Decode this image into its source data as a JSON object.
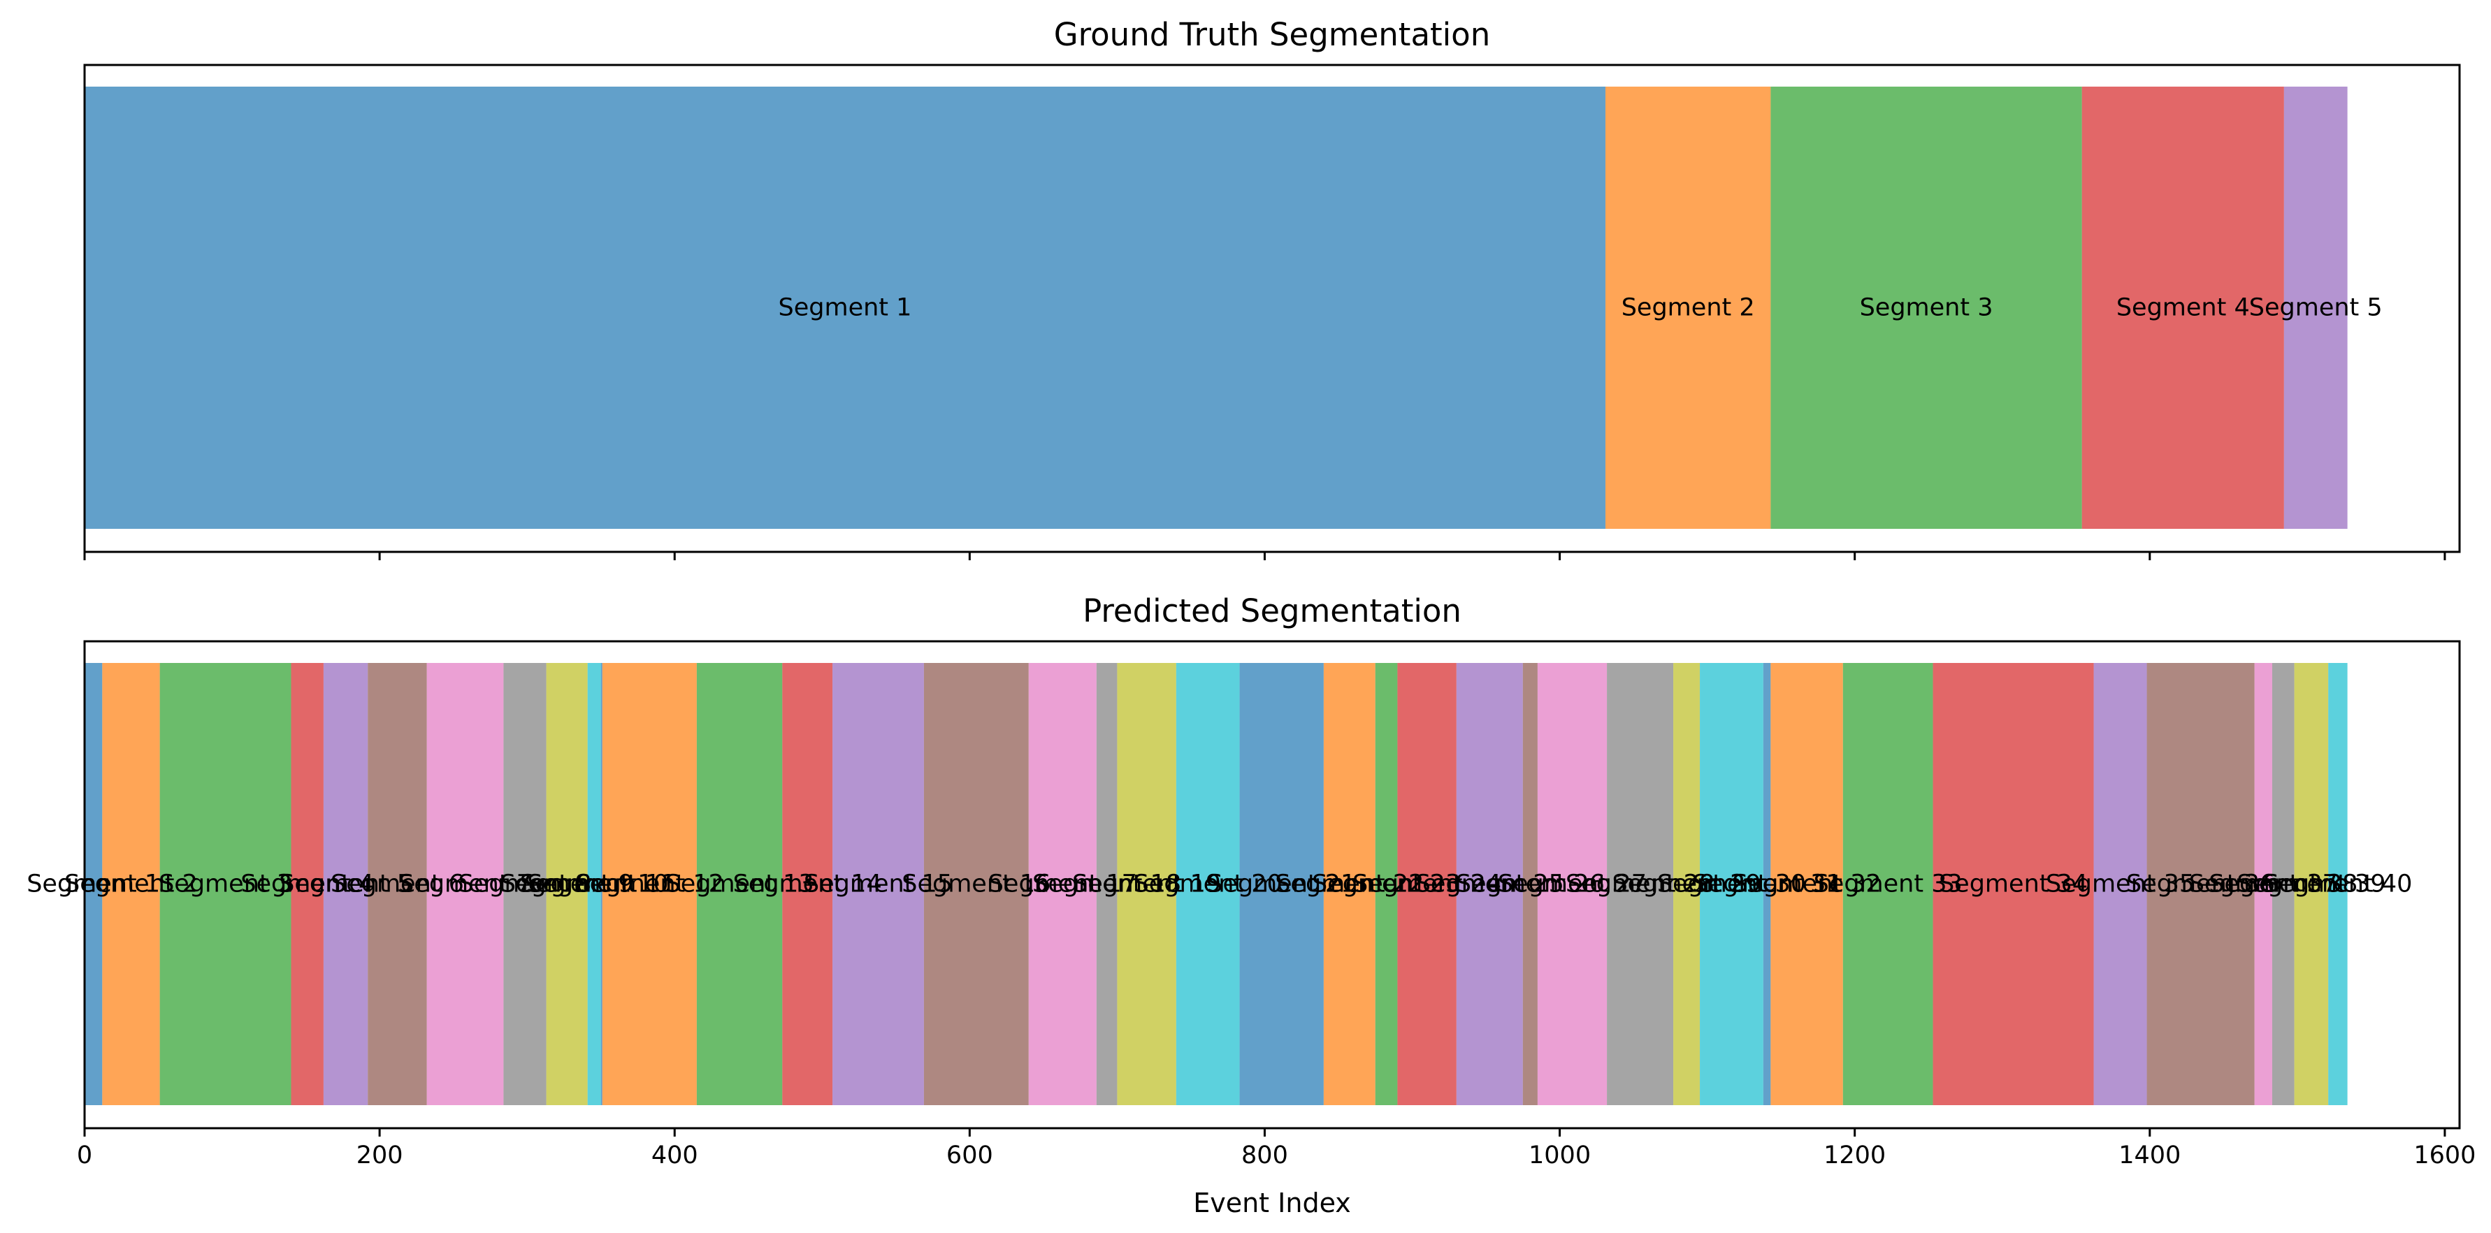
{
  "chart_data": [
    {
      "type": "bar",
      "orientation": "horizontal-stacked",
      "title": "Ground Truth Segmentation",
      "xlim": [
        0,
        1610
      ],
      "show_x_tick_labels": false,
      "segments": [
        {
          "label": "Segment 1",
          "start": 0,
          "end": 1031,
          "color": "#1f77b4"
        },
        {
          "label": "Segment 2",
          "start": 1031,
          "end": 1143,
          "color": "#ff7f0e"
        },
        {
          "label": "Segment 3",
          "start": 1143,
          "end": 1354,
          "color": "#2ca02c"
        },
        {
          "label": "Segment 4",
          "start": 1354,
          "end": 1491,
          "color": "#d62728"
        },
        {
          "label": "Segment 5",
          "start": 1491,
          "end": 1534,
          "color": "#9467bd"
        }
      ]
    },
    {
      "type": "bar",
      "orientation": "horizontal-stacked",
      "title": "Predicted Segmentation",
      "xlabel": "Event Index",
      "xlim": [
        0,
        1610
      ],
      "xticks": [
        0,
        200,
        400,
        600,
        800,
        1000,
        1200,
        1400,
        1600
      ],
      "show_x_tick_labels": true,
      "segments": [
        {
          "label": "Segment 1",
          "start": 0,
          "end": 12,
          "color": "#1f77b4"
        },
        {
          "label": "Segment 2",
          "start": 12,
          "end": 51,
          "color": "#ff7f0e"
        },
        {
          "label": "Segment 3",
          "start": 51,
          "end": 140,
          "color": "#2ca02c"
        },
        {
          "label": "Segment 4",
          "start": 140,
          "end": 162,
          "color": "#d62728"
        },
        {
          "label": "Segment 5",
          "start": 162,
          "end": 192,
          "color": "#9467bd"
        },
        {
          "label": "Segment 6",
          "start": 192,
          "end": 232,
          "color": "#8c564b"
        },
        {
          "label": "Segment 7",
          "start": 232,
          "end": 284,
          "color": "#e377c2"
        },
        {
          "label": "Segment 8",
          "start": 284,
          "end": 313,
          "color": "#7f7f7f"
        },
        {
          "label": "Segment 9",
          "start": 313,
          "end": 341,
          "color": "#bcbd22"
        },
        {
          "label": "Segment 10",
          "start": 341,
          "end": 350,
          "color": "#17becf"
        },
        {
          "label": "Segment 11",
          "start": 350,
          "end": 351,
          "color": "#1f77b4"
        },
        {
          "label": "Segment 12",
          "start": 351,
          "end": 415,
          "color": "#ff7f0e"
        },
        {
          "label": "Segment 13",
          "start": 415,
          "end": 473,
          "color": "#2ca02c"
        },
        {
          "label": "Segment 14",
          "start": 473,
          "end": 507,
          "color": "#d62728"
        },
        {
          "label": "Segment 15",
          "start": 507,
          "end": 569,
          "color": "#9467bd"
        },
        {
          "label": "Segment 16",
          "start": 569,
          "end": 640,
          "color": "#8c564b"
        },
        {
          "label": "Segment 17",
          "start": 640,
          "end": 686,
          "color": "#e377c2"
        },
        {
          "label": "Segment 18",
          "start": 686,
          "end": 700,
          "color": "#7f7f7f"
        },
        {
          "label": "Segment 19",
          "start": 700,
          "end": 740,
          "color": "#bcbd22"
        },
        {
          "label": "Segment 20",
          "start": 740,
          "end": 783,
          "color": "#17becf"
        },
        {
          "label": "Segment 21",
          "start": 783,
          "end": 840,
          "color": "#1f77b4"
        },
        {
          "label": "Segment 22",
          "start": 840,
          "end": 875,
          "color": "#ff7f0e"
        },
        {
          "label": "Segment 23",
          "start": 875,
          "end": 890,
          "color": "#2ca02c"
        },
        {
          "label": "Segment 24",
          "start": 890,
          "end": 930,
          "color": "#d62728"
        },
        {
          "label": "Segment 25",
          "start": 930,
          "end": 975,
          "color": "#9467bd"
        },
        {
          "label": "Segment 26",
          "start": 975,
          "end": 985,
          "color": "#8c564b"
        },
        {
          "label": "Segment 27",
          "start": 985,
          "end": 1032,
          "color": "#e377c2"
        },
        {
          "label": "Segment 28",
          "start": 1032,
          "end": 1077,
          "color": "#7f7f7f"
        },
        {
          "label": "Segment 29",
          "start": 1077,
          "end": 1095,
          "color": "#bcbd22"
        },
        {
          "label": "Segment 30",
          "start": 1095,
          "end": 1138,
          "color": "#17becf"
        },
        {
          "label": "Segment 31",
          "start": 1138,
          "end": 1143,
          "color": "#1f77b4"
        },
        {
          "label": "Segment 32",
          "start": 1143,
          "end": 1192,
          "color": "#ff7f0e"
        },
        {
          "label": "Segment 33",
          "start": 1192,
          "end": 1253,
          "color": "#2ca02c"
        },
        {
          "label": "Segment 34",
          "start": 1253,
          "end": 1362,
          "color": "#d62728"
        },
        {
          "label": "Segment 35",
          "start": 1362,
          "end": 1398,
          "color": "#9467bd"
        },
        {
          "label": "Segment 36",
          "start": 1398,
          "end": 1471,
          "color": "#8c564b"
        },
        {
          "label": "Segment 37",
          "start": 1471,
          "end": 1483,
          "color": "#e377c2"
        },
        {
          "label": "Segment 38",
          "start": 1483,
          "end": 1498,
          "color": "#7f7f7f"
        },
        {
          "label": "Segment 39",
          "start": 1498,
          "end": 1521,
          "color": "#bcbd22"
        },
        {
          "label": "Segment 40",
          "start": 1521,
          "end": 1534,
          "color": "#17becf"
        }
      ]
    }
  ]
}
